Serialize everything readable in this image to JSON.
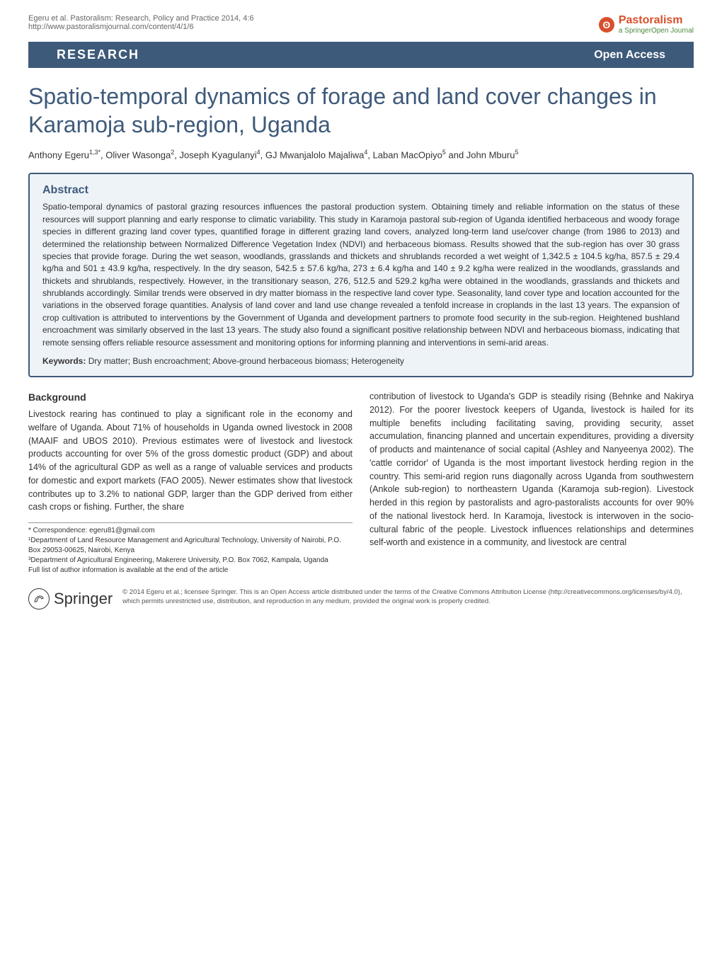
{
  "header": {
    "citation_line1": "Egeru et al. Pastoralism: Research, Policy and Practice 2014, 4:6",
    "citation_line2": "http://www.pastoralismjournal.com/content/4/1/6",
    "journal_name": "Pastoralism",
    "journal_subtitle": "a SpringerOpen Journal",
    "logo_glyph": "ʘ"
  },
  "banner": {
    "left": "RESEARCH",
    "right": "Open Access"
  },
  "title": "Spatio-temporal dynamics of forage and land cover changes in Karamoja sub-region, Uganda",
  "authors_html": "Anthony Egeru<sup>1,3*</sup>, Oliver Wasonga<sup>2</sup>, Joseph Kyagulanyi<sup>4</sup>, GJ Mwanjalolo Majaliwa<sup>4</sup>, Laban MacOpiyo<sup>5</sup> and John Mburu<sup>5</sup>",
  "abstract": {
    "heading": "Abstract",
    "text": "Spatio-temporal dynamics of pastoral grazing resources influences the pastoral production system. Obtaining timely and reliable information on the status of these resources will support planning and early response to climatic variability. This study in Karamoja pastoral sub-region of Uganda identified herbaceous and woody forage species in different grazing land cover types, quantified forage in different grazing land covers, analyzed long-term land use/cover change (from 1986 to 2013) and determined the relationship between Normalized Difference Vegetation Index (NDVI) and herbaceous biomass. Results showed that the sub-region has over 30 grass species that provide forage. During the wet season, woodlands, grasslands and thickets and shrublands recorded a wet weight of 1,342.5 ± 104.5 kg/ha, 857.5 ± 29.4 kg/ha and 501 ± 43.9 kg/ha, respectively. In the dry season, 542.5 ± 57.6 kg/ha, 273 ± 6.4 kg/ha and 140 ± 9.2 kg/ha were realized in the woodlands, grasslands and thickets and shrublands, respectively. However, in the transitionary season, 276, 512.5 and 529.2 kg/ha were obtained in the woodlands, grasslands and thickets and shrublands accordingly. Similar trends were observed in dry matter biomass in the respective land cover type. Seasonality, land cover type and location accounted for the variations in the observed forage quantities. Analysis of land cover and land use change revealed a tenfold increase in croplands in the last 13 years. The expansion of crop cultivation is attributed to interventions by the Government of Uganda and development partners to promote food security in the sub-region. Heightened bushland encroachment was similarly observed in the last 13 years. The study also found a significant positive relationship between NDVI and herbaceous biomass, indicating that remote sensing offers reliable resource assessment and monitoring options for informing planning and interventions in semi-arid areas.",
    "keywords_label": "Keywords:",
    "keywords": " Dry matter; Bush encroachment; Above-ground herbaceous biomass; Heterogeneity"
  },
  "body": {
    "section_heading": "Background",
    "col1_para": "Livestock rearing has continued to play a significant role in the economy and welfare of Uganda. About 71% of households in Uganda owned livestock in 2008 (MAAIF and UBOS 2010). Previous estimates were of livestock and livestock products accounting for over 5% of the gross domestic product (GDP) and about 14% of the agricultural GDP as well as a range of valuable services and products for domestic and export markets (FAO 2005). Newer estimates show that livestock contributes up to 3.2% to national GDP, larger than the GDP derived from either cash crops or fishing. Further, the share",
    "col2_para": "contribution of livestock to Uganda's GDP is steadily rising (Behnke and Nakirya 2012). For the poorer livestock keepers of Uganda, livestock is hailed for its multiple benefits including facilitating saving, providing security, asset accumulation, financing planned and uncertain expenditures, providing a diversity of products and maintenance of social capital (Ashley and Nanyeenya 2002). The 'cattle corridor' of Uganda is the most important livestock herding region in the country. This semi-arid region runs diagonally across Uganda from southwestern (Ankole sub-region) to northeastern Uganda (Karamoja sub-region). Livestock herded in this region by pastoralists and agro-pastoralists accounts for over 90% of the national livestock herd. In Karamoja, livestock is interwoven in the socio-cultural fabric of the people. Livestock influences relationships and determines self-worth and existence in a community, and livestock are central"
  },
  "footnotes": {
    "correspondence": "* Correspondence: egeru81@gmail.com",
    "aff1": "¹Department of Land Resource Management and Agricultural Technology, University of Nairobi, P.O. Box 29053-00625, Nairobi, Kenya",
    "aff3": "³Department of Agricultural Engineering, Makerere University, P.O. Box 7062, Kampala, Uganda",
    "full_list": "Full list of author information is available at the end of the article"
  },
  "footer": {
    "springer_name": "Springer",
    "springer_glyph": "�описать",
    "springer_icon_glyph": "𓂀",
    "license": "© 2014 Egeru et al.; licensee Springer. This is an Open Access article distributed under the terms of the Creative Commons Attribution License (http://creativecommons.org/licenses/by/4.0), which permits unrestricted use, distribution, and reproduction in any medium, provided the original work is properly credited."
  },
  "colors": {
    "banner_bg": "#3e5a7a",
    "abstract_bg": "#eef3f8",
    "journal_red": "#d94f2b",
    "journal_green": "#4a8a3d"
  }
}
